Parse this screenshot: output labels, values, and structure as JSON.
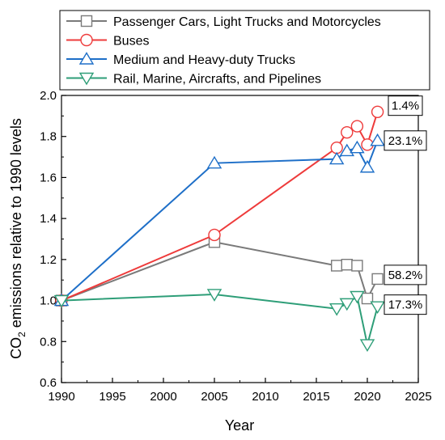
{
  "chart_data": {
    "type": "line",
    "xlabel": "Year",
    "ylabel": "CO2 emissions relative to 1990 levels",
    "ylabel_main": "CO",
    "ylabel_sub": "2",
    "ylabel_rest": " emissions relative to 1990 levels",
    "xlim": [
      1990,
      2025
    ],
    "ylim": [
      0.6,
      2.0
    ],
    "xticks": [
      1990,
      1995,
      2000,
      2005,
      2010,
      2015,
      2020,
      2025
    ],
    "yticks": [
      0.6,
      0.8,
      1.0,
      1.2,
      1.4,
      1.6,
      1.8,
      2.0
    ],
    "legend_position": "top",
    "series": [
      {
        "name": "Passenger Cars, Light Trucks and Motorcycles",
        "color": "#7a7a7a",
        "marker": "square",
        "x": [
          1990,
          2005,
          2017,
          2018,
          2019,
          2020,
          2021
        ],
        "y": [
          1.0,
          1.285,
          1.17,
          1.175,
          1.17,
          1.01,
          1.105
        ],
        "annotation": "58.2%"
      },
      {
        "name": "Buses",
        "color": "#ee3b3b",
        "marker": "circle",
        "x": [
          1990,
          2005,
          2017,
          2018,
          2019,
          2020,
          2021
        ],
        "y": [
          1.0,
          1.32,
          1.745,
          1.82,
          1.85,
          1.76,
          1.92
        ],
        "annotation": "1.4%"
      },
      {
        "name": "Medium and Heavy-duty Trucks",
        "color": "#1e6fc8",
        "marker": "triangle-up",
        "x": [
          1990,
          2005,
          2017,
          2018,
          2019,
          2020,
          2021
        ],
        "y": [
          1.0,
          1.67,
          1.69,
          1.73,
          1.745,
          1.65,
          1.78
        ],
        "annotation": "23.1%"
      },
      {
        "name": "Rail, Marine, Aircrafts, and Pipelines",
        "color": "#2e9e78",
        "marker": "triangle-down",
        "x": [
          1990,
          2005,
          2017,
          2018,
          2019,
          2020,
          2021
        ],
        "y": [
          1.0,
          1.03,
          0.96,
          0.985,
          1.02,
          0.785,
          0.97
        ],
        "annotation": "17.3%"
      }
    ]
  }
}
